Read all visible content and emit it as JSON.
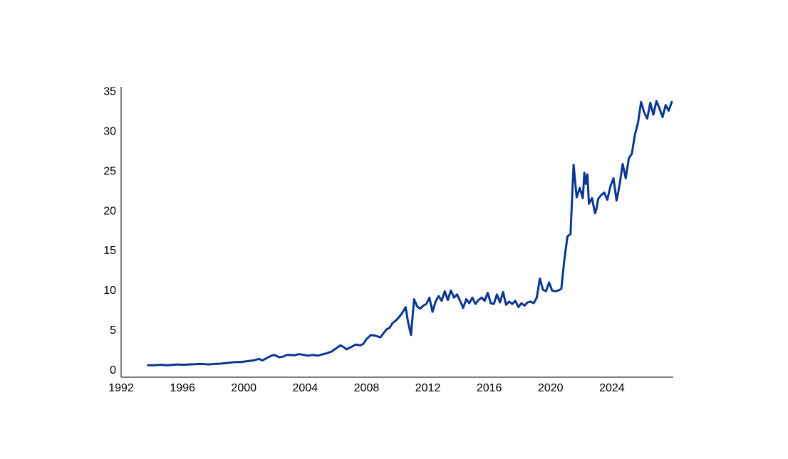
{
  "chart_data": {
    "type": "line",
    "title": "",
    "xlabel": "",
    "ylabel": "",
    "xlim": [
      1992,
      2028
    ],
    "ylim": [
      -1,
      35.5
    ],
    "xticks": [
      "1992",
      "1996",
      "2000",
      "2004",
      "2008",
      "2012",
      "2016",
      "2020",
      "2024"
    ],
    "yticks": [
      "0",
      "5",
      "10",
      "15",
      "20",
      "25",
      "30",
      "35"
    ],
    "grid": false,
    "legend": "none",
    "colors": {
      "series": "#0a3694",
      "axis": "#000000",
      "text": "#000000"
    },
    "series": [
      {
        "x": [
          1993.75,
          1994.2,
          1994.6,
          1995.0,
          1995.4,
          1995.7,
          1996.0,
          1996.5,
          1997.0,
          1997.4,
          1997.7,
          1998.0,
          1998.5,
          1999.0,
          1999.4,
          1999.8,
          2000.2,
          2000.6,
          2000.8,
          2001.0,
          2001.2,
          2001.5,
          2001.8,
          2002.0,
          2002.3,
          2002.6,
          2002.8,
          2003.0,
          2003.3,
          2003.6,
          2003.9,
          2004.2,
          2004.5,
          2004.8,
          2005.0,
          2005.2,
          2005.4,
          2005.7,
          2006.0,
          2006.3,
          2006.5,
          2006.7,
          2007.0,
          2007.3,
          2007.6,
          2007.8,
          2008.0,
          2008.3,
          2008.6,
          2008.9,
          2009.1,
          2009.3,
          2009.5,
          2009.7,
          2009.9,
          2010.1,
          2010.3,
          2010.55,
          2010.7,
          2010.9,
          2011.1,
          2011.3,
          2011.5,
          2011.7,
          2011.9,
          2012.1,
          2012.3,
          2012.5,
          2012.7,
          2012.9,
          2013.1,
          2013.3,
          2013.5,
          2013.7,
          2013.9,
          2014.1,
          2014.3,
          2014.5,
          2014.7,
          2014.9,
          2015.1,
          2015.3,
          2015.5,
          2015.7,
          2015.9,
          2016.1,
          2016.3,
          2016.5,
          2016.7,
          2016.9,
          2017.1,
          2017.3,
          2017.5,
          2017.7,
          2017.9,
          2018.1,
          2018.3,
          2018.5,
          2018.7,
          2018.9,
          2019.1,
          2019.3,
          2019.5,
          2019.7,
          2019.9,
          2020.1,
          2020.3,
          2020.5,
          2020.7,
          2020.9,
          2021.1,
          2021.3,
          2021.5,
          2021.7,
          2021.9,
          2022.1,
          2022.2,
          2022.3,
          2022.4,
          2022.5,
          2022.7,
          2022.9,
          2023.0,
          2023.1,
          2023.3,
          2023.5,
          2023.7,
          2023.9,
          2024.1,
          2024.3,
          2024.5,
          2024.7,
          2024.9,
          2025.1,
          2025.3,
          2025.5,
          2025.7,
          2025.9,
          2026.1,
          2026.3,
          2026.5,
          2026.7,
          2026.9,
          2027.1,
          2027.3,
          2027.5,
          2027.7,
          2027.9
        ],
        "values": [
          0.5,
          0.5,
          0.55,
          0.5,
          0.55,
          0.6,
          0.55,
          0.6,
          0.65,
          0.65,
          0.6,
          0.65,
          0.7,
          0.8,
          0.9,
          0.9,
          1.0,
          1.1,
          1.2,
          1.3,
          1.1,
          1.4,
          1.7,
          1.8,
          1.5,
          1.6,
          1.8,
          1.8,
          1.75,
          1.9,
          1.8,
          1.7,
          1.8,
          1.7,
          1.8,
          1.9,
          2.0,
          2.2,
          2.6,
          3.0,
          2.8,
          2.5,
          2.8,
          3.1,
          3.0,
          3.2,
          3.8,
          4.3,
          4.2,
          4.0,
          4.5,
          5.0,
          5.2,
          5.8,
          6.1,
          6.5,
          7.0,
          7.8,
          6.0,
          4.3,
          8.8,
          7.9,
          7.6,
          8.0,
          8.2,
          9.0,
          7.2,
          8.5,
          9.2,
          8.6,
          9.8,
          8.7,
          9.9,
          9.0,
          9.4,
          8.6,
          7.7,
          8.8,
          8.3,
          9.0,
          8.2,
          8.7,
          9.0,
          8.6,
          9.6,
          8.3,
          8.2,
          9.4,
          8.4,
          9.7,
          8.1,
          8.5,
          8.2,
          8.6,
          7.8,
          8.3,
          8.0,
          8.4,
          8.5,
          8.3,
          9.0,
          11.4,
          10.0,
          9.8,
          10.9,
          9.9,
          9.8,
          9.9,
          10.1,
          13.8,
          16.7,
          17.0,
          25.7,
          21.6,
          22.8,
          21.5,
          24.7,
          23.3,
          24.5,
          20.8,
          21.5,
          19.6,
          20.2,
          21.4,
          21.9,
          22.2,
          21.3,
          23.0,
          24.0,
          21.2,
          23.2,
          25.8,
          24.0,
          26.5,
          27.1,
          29.5,
          31.0,
          33.6,
          32.3,
          31.5,
          33.5,
          32.0,
          33.7,
          32.8,
          31.7,
          33.2,
          32.5,
          33.6
        ]
      }
    ]
  }
}
